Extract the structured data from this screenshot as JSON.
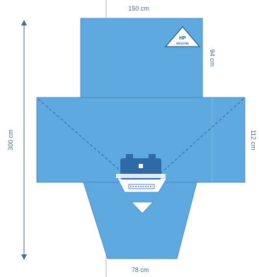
{
  "colors": {
    "shape_fill": "#5ea9e0",
    "shape_stroke": "#4a8cc2",
    "dash": "#2f6aa3",
    "dim_line": "#3a6f9a",
    "text": "#3a6f9a",
    "vehicle": "#2e6aa8"
  },
  "dimensions": {
    "top_width": "150 cm",
    "top_length": "94 cm",
    "overall_length": "300 cm",
    "mid_length": "112 cm",
    "bottom_width": "78 cm"
  },
  "badge": {
    "label": "HP",
    "standard": "EN13795"
  },
  "icons": [
    "triangle-badge-icon",
    "vehicle-icon",
    "up-arrow-icon",
    "down-arrow-icon"
  ]
}
